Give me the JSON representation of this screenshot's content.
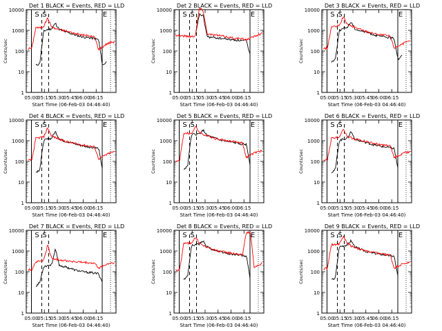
{
  "figure": {
    "background": "#ffffff"
  },
  "colors": {
    "events": "#000000",
    "lld": "#ff0000",
    "axis": "#000000"
  },
  "shared": {
    "ylabel": "Counts/sec",
    "xlabel": "Start Time (06-Feb-03 04:46:40)",
    "x_ticks": [
      "05:00",
      "05:15",
      "05:30",
      "05:45",
      "06:00",
      "06:15"
    ],
    "y_ticks": [
      "1",
      "10",
      "100",
      "1000",
      "10000"
    ],
    "marker_labels": [
      "S",
      "S",
      "E"
    ]
  },
  "chart_data": [
    {
      "type": "line",
      "title": "Det 1 BLACK = Events, RED = LLD",
      "xlabel": "Start Time (06-Feb-03 04:46:40)",
      "ylabel": "Counts/sec",
      "xlim_min": [
        -6,
        98
      ],
      "ylim": [
        1,
        10000
      ],
      "yscale": "log",
      "vlines_solid_min": [
        0,
        82
      ],
      "vlines_dashed_min": [
        12,
        20
      ],
      "red_level": [
        130,
        140,
        1400,
        1300,
        1600,
        4000,
        1500,
        1200,
        1100,
        1000,
        900,
        800,
        720,
        640,
        600,
        560,
        520,
        480,
        120,
        160,
        220,
        260,
        280
      ],
      "black_level": [
        null,
        null,
        20,
        25,
        900,
        1100,
        1200,
        2200,
        1100,
        900,
        800,
        700,
        600,
        540,
        480,
        450,
        430,
        400,
        350,
        20,
        30,
        null,
        null
      ]
    },
    {
      "type": "line",
      "title": "Det 2 BLACK = Events, RED = LLD",
      "xlabel": "Start Time (06-Feb-03 04:46:40)",
      "ylabel": "Counts/sec",
      "xlim_min": [
        -6,
        98
      ],
      "ylim": [
        1,
        10000
      ],
      "yscale": "log",
      "vlines_solid_min": [
        0,
        82
      ],
      "vlines_dashed_min": [
        12,
        20
      ],
      "red_level": [
        600,
        560,
        540,
        520,
        500,
        560,
        12000,
        9000,
        700,
        620,
        600,
        560,
        520,
        480,
        450,
        420,
        400,
        380,
        360,
        420,
        520,
        640,
        700
      ],
      "black_level": [
        null,
        null,
        40,
        null,
        null,
        500,
        6000,
        5000,
        500,
        450,
        440,
        420,
        400,
        380,
        360,
        340,
        330,
        320,
        310,
        60,
        null,
        null,
        null
      ]
    },
    {
      "type": "line",
      "title": "Det 3 BLACK = Events, RED = LLD",
      "xlabel": "Start Time (06-Feb-03 04:46:40)",
      "ylabel": "Counts/sec",
      "xlim_min": [
        -6,
        98
      ],
      "ylim": [
        1,
        10000
      ],
      "yscale": "log",
      "vlines_solid_min": [
        0,
        82
      ],
      "vlines_dashed_min": [
        12,
        20
      ],
      "red_level": [
        130,
        140,
        1500,
        1500,
        1700,
        4500,
        2000,
        1600,
        1400,
        1200,
        1000,
        900,
        780,
        700,
        640,
        600,
        560,
        520,
        140,
        180,
        220,
        260,
        300
      ],
      "black_level": [
        null,
        null,
        30,
        40,
        1000,
        1200,
        1400,
        2600,
        1200,
        1000,
        900,
        800,
        700,
        600,
        540,
        500,
        470,
        440,
        400,
        40,
        60,
        null,
        null
      ]
    },
    {
      "type": "line",
      "title": "Det 4 BLACK = Events, RED = LLD",
      "xlabel": "Start Time (06-Feb-03 04:46:40)",
      "ylabel": "Counts/sec",
      "xlim_min": [
        -6,
        98
      ],
      "ylim": [
        1,
        10000
      ],
      "yscale": "log",
      "vlines_solid_min": [
        0,
        82
      ],
      "vlines_dashed_min": [
        12,
        20
      ],
      "red_level": [
        110,
        120,
        1300,
        1400,
        1500,
        4200,
        1700,
        1400,
        1200,
        1000,
        900,
        800,
        720,
        660,
        620,
        580,
        540,
        500,
        130,
        170,
        210,
        260,
        290
      ],
      "black_level": [
        null,
        null,
        30,
        40,
        1000,
        1200,
        1300,
        2800,
        1200,
        1000,
        900,
        800,
        700,
        620,
        560,
        520,
        490,
        460,
        420,
        40,
        null,
        null,
        null
      ]
    },
    {
      "type": "line",
      "title": "Det 5 BLACK = Events, RED = LLD",
      "xlabel": "Start Time (06-Feb-03 04:46:40)",
      "ylabel": "Counts/sec",
      "xlim_min": [
        -6,
        98
      ],
      "ylim": [
        1,
        10000
      ],
      "yscale": "log",
      "vlines_solid_min": [
        0,
        82
      ],
      "vlines_dashed_min": [
        12,
        20
      ],
      "red_level": [
        100,
        110,
        2200,
        2300,
        2200,
        4800,
        2600,
        2000,
        1700,
        1500,
        1300,
        1200,
        1100,
        1000,
        950,
        900,
        850,
        800,
        150,
        200,
        250,
        300,
        320
      ],
      "black_level": [
        null,
        null,
        40,
        60,
        2000,
        2000,
        2100,
        3200,
        1800,
        1500,
        1300,
        1100,
        1000,
        900,
        850,
        800,
        750,
        700,
        650,
        60,
        null,
        null,
        null
      ]
    },
    {
      "type": "line",
      "title": "Det 6 BLACK = Events, RED = LLD",
      "xlabel": "Start Time (06-Feb-03 04:46:40)",
      "ylabel": "Counts/sec",
      "xlim_min": [
        -6,
        98
      ],
      "ylim": [
        1,
        10000
      ],
      "yscale": "log",
      "vlines_solid_min": [
        0,
        82
      ],
      "vlines_dashed_min": [
        12,
        20
      ],
      "red_level": [
        110,
        120,
        1300,
        1400,
        1500,
        4000,
        1600,
        1400,
        1200,
        1100,
        1000,
        900,
        800,
        720,
        660,
        620,
        580,
        540,
        150,
        190,
        230,
        270,
        300
      ],
      "black_level": [
        null,
        null,
        30,
        40,
        1000,
        1200,
        1300,
        2800,
        1200,
        1000,
        900,
        800,
        700,
        620,
        560,
        520,
        490,
        460,
        420,
        40,
        null,
        null,
        null
      ]
    },
    {
      "type": "line",
      "title": "Det 7 BLACK = Events, RED = LLD",
      "xlabel": "Start Time (06-Feb-03 04:46:40)",
      "ylabel": "Counts/sec",
      "xlim_min": [
        -6,
        98
      ],
      "ylim": [
        1,
        10000
      ],
      "yscale": "log",
      "vlines_solid_min": [
        0,
        82
      ],
      "vlines_dashed_min": [
        12,
        20
      ],
      "red_level": [
        120,
        130,
        300,
        320,
        350,
        2000,
        450,
        400,
        380,
        360,
        340,
        320,
        300,
        290,
        280,
        270,
        260,
        250,
        150,
        180,
        220,
        260,
        270
      ],
      "black_level": [
        null,
        null,
        20,
        30,
        180,
        200,
        220,
        1200,
        200,
        180,
        160,
        140,
        120,
        110,
        100,
        95,
        90,
        85,
        80,
        30,
        null,
        null,
        null
      ]
    },
    {
      "type": "line",
      "title": "Det 8 BLACK = Events, RED = LLD",
      "xlabel": "Start Time (06-Feb-03 04:46:40)",
      "ylabel": "Counts/sec",
      "xlim_min": [
        -6,
        98
      ],
      "ylim": [
        1,
        10000
      ],
      "yscale": "log",
      "vlines_solid_min": [
        0,
        82
      ],
      "vlines_dashed_min": [
        12,
        20
      ],
      "red_level": [
        120,
        130,
        2200,
        2400,
        2500,
        4500,
        2500,
        1800,
        1500,
        1300,
        1100,
        1000,
        900,
        850,
        800,
        750,
        700,
        650,
        8000,
        8000,
        150,
        200,
        250
      ],
      "black_level": [
        null,
        null,
        40,
        60,
        1800,
        2000,
        2200,
        3000,
        1600,
        1300,
        1100,
        950,
        850,
        780,
        720,
        680,
        640,
        600,
        560,
        40,
        null,
        null,
        null
      ]
    },
    {
      "type": "line",
      "title": "Det 9 BLACK = Events, RED = LLD",
      "xlabel": "Start Time (06-Feb-03 04:46:40)",
      "ylabel": "Counts/sec",
      "xlim_min": [
        -6,
        98
      ],
      "ylim": [
        1,
        10000
      ],
      "yscale": "log",
      "vlines_solid_min": [
        0,
        82
      ],
      "vlines_dashed_min": [
        12,
        20
      ],
      "red_level": [
        140,
        150,
        2000,
        2100,
        2200,
        5000,
        2400,
        1800,
        1500,
        1300,
        1100,
        1000,
        900,
        840,
        780,
        720,
        680,
        640,
        150,
        190,
        230,
        260,
        280
      ],
      "black_level": [
        null,
        null,
        40,
        50,
        1600,
        1800,
        2000,
        3200,
        1600,
        1300,
        1100,
        950,
        850,
        780,
        720,
        680,
        640,
        600,
        560,
        50,
        null,
        null,
        null
      ]
    }
  ]
}
